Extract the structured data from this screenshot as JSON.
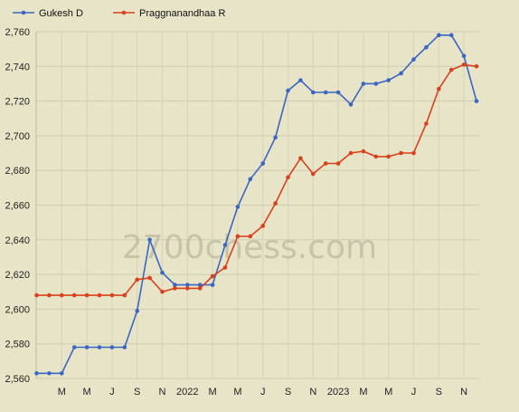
{
  "watermark": "2700chess.com",
  "chart_data": {
    "type": "line",
    "x_tick_labels": [
      "M",
      "M",
      "J",
      "S",
      "N",
      "2022",
      "M",
      "M",
      "J",
      "S",
      "N",
      "2023",
      "M",
      "M",
      "J",
      "S",
      "N"
    ],
    "ylim": [
      2560,
      2760
    ],
    "y_ticks": [
      2560,
      2580,
      2600,
      2620,
      2640,
      2660,
      2680,
      2700,
      2720,
      2740,
      2760
    ],
    "y_tick_labels": [
      "2,560",
      "2,580",
      "2,600",
      "2,620",
      "2,640",
      "2,660",
      "2,680",
      "2,700",
      "2,720",
      "2,740",
      "2,760"
    ],
    "grid": true,
    "legend_position": "top-left",
    "series": [
      {
        "name": "Gukesh D",
        "color": "#3a66c4",
        "values": [
          2563,
          2563,
          2563,
          2578,
          2578,
          2578,
          2578,
          2578,
          2599,
          2640,
          2621,
          2614,
          2614,
          2614,
          2614,
          2637,
          2659,
          2675,
          2684,
          2699,
          2726,
          2732,
          2725,
          2725,
          2725,
          2718,
          2730,
          2730,
          2732,
          2736,
          2744,
          2751,
          2758,
          2758,
          2746,
          2720
        ]
      },
      {
        "name": "Praggnanandhaa R",
        "color": "#d8401e",
        "values": [
          2608,
          2608,
          2608,
          2608,
          2608,
          2608,
          2608,
          2608,
          2617,
          2618,
          2610,
          2612,
          2612,
          2612,
          2619,
          2624,
          2642,
          2642,
          2648,
          2661,
          2676,
          2687,
          2678,
          2684,
          2684,
          2690,
          2691,
          2688,
          2688,
          2690,
          2690,
          2707,
          2727,
          2738,
          2741,
          2740
        ]
      }
    ]
  }
}
